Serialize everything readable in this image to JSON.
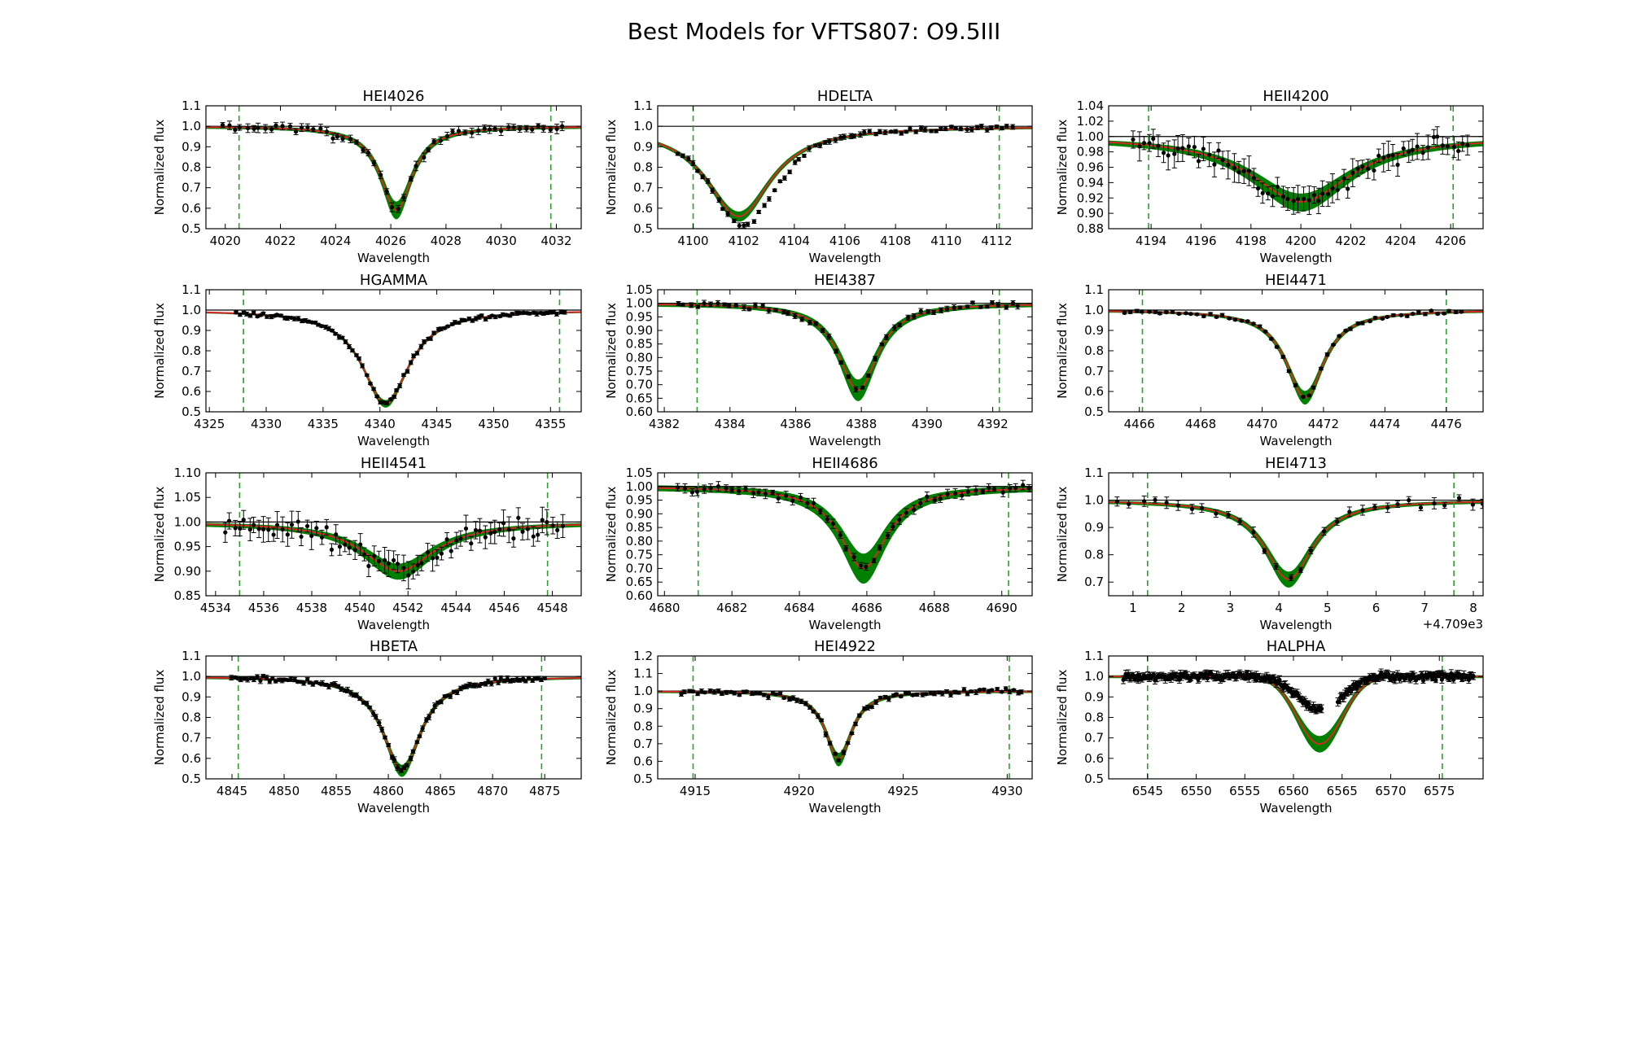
{
  "figure": {
    "title": "Best Models for VFTS807: O9.5III",
    "colors": {
      "model": "#d62728",
      "envelope": "#008000",
      "data": "#000000",
      "window": "#2ca02c",
      "continuum": "#000000"
    }
  },
  "chart_data": [
    {
      "type": "line",
      "title": "HEI4026",
      "xlabel": "Wavelength",
      "ylabel": "Normalized flux",
      "xlim": [
        4019.3,
        4032.9
      ],
      "ylim": [
        0.5,
        1.1
      ],
      "xticks": [
        4020,
        4022,
        4024,
        4026,
        4028,
        4030,
        4032
      ],
      "yticks": [
        0.5,
        0.6,
        0.7,
        0.8,
        0.9,
        1.0,
        1.1
      ],
      "ytick_decimals": 1,
      "xtick_decimals": 0,
      "window": [
        4020.5,
        4031.8
      ],
      "line": {
        "center": 4026.2,
        "depth": 0.41,
        "width": 0.7,
        "shape": "lorentz",
        "band": 0.02,
        "band_extra": 0.04
      },
      "data": {
        "step": 0.22,
        "scatter": 0.02,
        "err": 0.017,
        "seed": 1
      }
    },
    {
      "type": "line",
      "title": "HDELTA",
      "xlabel": "Wavelength",
      "ylabel": "Normalized flux",
      "xlim": [
        4098.6,
        4113.4
      ],
      "ylim": [
        0.5,
        1.1
      ],
      "xticks": [
        4100,
        4102,
        4104,
        4106,
        4108,
        4110,
        4112
      ],
      "yticks": [
        0.5,
        0.6,
        0.7,
        0.8,
        0.9,
        1.0,
        1.1
      ],
      "ytick_decimals": 1,
      "xtick_decimals": 0,
      "window": [
        4100.0,
        4112.1
      ],
      "line": {
        "center": 4101.8,
        "depth": 0.44,
        "width": 1.55,
        "shape": "lorentz",
        "band": 0.015,
        "band_extra": 0.01
      },
      "data": {
        "step": 0.2,
        "scatter": 0.012,
        "err": 0.01,
        "seed": 2,
        "offset": {
          "center": 4102.9,
          "amp": -0.08,
          "width": 0.9
        }
      }
    },
    {
      "type": "line",
      "title": "HEII4200",
      "xlabel": "Wavelength",
      "ylabel": "Normalized flux",
      "xlim": [
        4192.3,
        4207.3
      ],
      "ylim": [
        0.88,
        1.04
      ],
      "xticks": [
        4194,
        4196,
        4198,
        4200,
        4202,
        4204,
        4206
      ],
      "yticks": [
        0.88,
        0.9,
        0.92,
        0.94,
        0.96,
        0.98,
        1.0,
        1.02,
        1.04
      ],
      "ytick_decimals": 2,
      "xtick_decimals": 0,
      "window": [
        4193.9,
        4206.1
      ],
      "line": {
        "center": 4200.0,
        "depth": 0.085,
        "width": 2.4,
        "shape": "lorentz",
        "band": 0.005,
        "band_extra": 0.05
      },
      "data": {
        "step": 0.2,
        "scatter": 0.012,
        "err": 0.014,
        "seed": 3
      }
    },
    {
      "type": "line",
      "title": "HGAMMA",
      "xlabel": "Wavelength",
      "ylabel": "Normalized flux",
      "xlim": [
        4324.7,
        4357.7
      ],
      "ylim": [
        0.5,
        1.1
      ],
      "xticks": [
        4325,
        4330,
        4335,
        4340,
        4345,
        4350,
        4355
      ],
      "yticks": [
        0.5,
        0.6,
        0.7,
        0.8,
        0.9,
        1.0,
        1.1
      ],
      "ytick_decimals": 1,
      "xtick_decimals": 0,
      "window": [
        4328.0,
        4355.8
      ],
      "line": {
        "center": 4340.5,
        "depth": 0.46,
        "width": 2.5,
        "shape": "lorentz",
        "band": 0.01,
        "band_extra": 0.01
      },
      "data": {
        "step": 0.3,
        "scatter": 0.01,
        "err": 0.008,
        "seed": 4
      }
    },
    {
      "type": "line",
      "title": "HEI4387",
      "xlabel": "Wavelength",
      "ylabel": "Normalized flux",
      "xlim": [
        4381.8,
        4393.2
      ],
      "ylim": [
        0.6,
        1.05
      ],
      "xticks": [
        4382,
        4384,
        4386,
        4388,
        4390,
        4392
      ],
      "yticks": [
        0.6,
        0.65,
        0.7,
        0.75,
        0.8,
        0.85,
        0.9,
        0.95,
        1.0,
        1.05
      ],
      "ytick_decimals": 2,
      "xtick_decimals": 0,
      "window": [
        4383.0,
        4392.2
      ],
      "line": {
        "center": 4387.9,
        "depth": 0.32,
        "width": 0.72,
        "shape": "lorentz",
        "band": 0.02,
        "band_extra": 0.04
      },
      "data": {
        "step": 0.2,
        "scatter": 0.012,
        "err": 0.008,
        "seed": 5
      }
    },
    {
      "type": "line",
      "title": "HEI4471",
      "xlabel": "Wavelength",
      "ylabel": "Normalized flux",
      "xlim": [
        4465.0,
        4477.2
      ],
      "ylim": [
        0.5,
        1.1
      ],
      "xticks": [
        4466,
        4468,
        4470,
        4472,
        4474,
        4476
      ],
      "yticks": [
        0.5,
        0.6,
        0.7,
        0.8,
        0.9,
        1.0,
        1.1
      ],
      "ytick_decimals": 1,
      "xtick_decimals": 0,
      "window": [
        4466.1,
        4476.0
      ],
      "line": {
        "center": 4471.4,
        "depth": 0.43,
        "width": 0.75,
        "shape": "lorentz",
        "band": 0.015,
        "band_extra": 0.03
      },
      "data": {
        "step": 0.2,
        "scatter": 0.01,
        "err": 0.006,
        "seed": 6
      }
    },
    {
      "type": "line",
      "title": "HEII4541",
      "xlabel": "Wavelength",
      "ylabel": "Normalized flux",
      "xlim": [
        4533.6,
        4549.2
      ],
      "ylim": [
        0.85,
        1.1
      ],
      "xticks": [
        4534,
        4536,
        4538,
        4540,
        4542,
        4544,
        4546,
        4548
      ],
      "yticks": [
        0.85,
        0.9,
        0.95,
        1.0,
        1.05,
        1.1
      ],
      "ytick_decimals": 2,
      "xtick_decimals": 0,
      "window": [
        4535.0,
        4547.8
      ],
      "line": {
        "center": 4541.6,
        "depth": 0.1,
        "width": 1.8,
        "shape": "lorentz",
        "band": 0.008,
        "band_extra": 0.05
      },
      "data": {
        "step": 0.2,
        "scatter": 0.022,
        "err": 0.02,
        "seed": 7
      }
    },
    {
      "type": "line",
      "title": "HEII4686",
      "xlabel": "Wavelength",
      "ylabel": "Normalized flux",
      "xlim": [
        4679.8,
        4690.9
      ],
      "ylim": [
        0.6,
        1.05
      ],
      "xticks": [
        4680,
        4682,
        4684,
        4686,
        4688,
        4690
      ],
      "yticks": [
        0.6,
        0.65,
        0.7,
        0.75,
        0.8,
        0.85,
        0.9,
        0.95,
        1.0,
        1.05
      ],
      "ytick_decimals": 2,
      "xtick_decimals": 0,
      "window": [
        4681.0,
        4690.2
      ],
      "line": {
        "center": 4685.9,
        "depth": 0.3,
        "width": 0.85,
        "shape": "lorentz",
        "band": 0.03,
        "band_extra": 0.05
      },
      "data": {
        "step": 0.2,
        "scatter": 0.015,
        "err": 0.013,
        "seed": 8
      }
    },
    {
      "type": "line",
      "title": "HEI4713",
      "xlabel": "Wavelength",
      "ylabel": "Normalized flux",
      "xlim": [
        0.5,
        8.2
      ],
      "ylim": [
        0.65,
        1.1
      ],
      "xticks": [
        1,
        2,
        3,
        4,
        5,
        6,
        7,
        8
      ],
      "yticks": [
        0.7,
        0.8,
        0.9,
        1.0,
        1.1
      ],
      "ytick_decimals": 1,
      "xtick_decimals": 0,
      "x_offset_label": "+4.709e3",
      "window": [
        1.3,
        7.6
      ],
      "line": {
        "center": 4.2,
        "depth": 0.29,
        "width": 0.6,
        "shape": "lorentz",
        "band": 0.015,
        "band_extra": 0.03
      },
      "data": {
        "step": 0.25,
        "scatter": 0.015,
        "err": 0.015,
        "seed": 9
      }
    },
    {
      "type": "line",
      "title": "HBETA",
      "xlabel": "Wavelength",
      "ylabel": "Normalized flux",
      "xlim": [
        4842.5,
        4878.5
      ],
      "ylim": [
        0.5,
        1.1
      ],
      "xticks": [
        4845,
        4850,
        4855,
        4860,
        4865,
        4870,
        4875
      ],
      "yticks": [
        0.5,
        0.6,
        0.7,
        0.8,
        0.9,
        1.0,
        1.1
      ],
      "ytick_decimals": 1,
      "xtick_decimals": 0,
      "window": [
        4845.6,
        4874.7
      ],
      "line": {
        "center": 4861.3,
        "depth": 0.46,
        "width": 2.2,
        "shape": "lorentz",
        "band": 0.015,
        "band_extra": 0.02
      },
      "data": {
        "step": 0.3,
        "scatter": 0.012,
        "err": 0.01,
        "seed": 10
      }
    },
    {
      "type": "line",
      "title": "HEI4922",
      "xlabel": "Wavelength",
      "ylabel": "Normalized flux",
      "xlim": [
        4913.2,
        4931.2
      ],
      "ylim": [
        0.5,
        1.2
      ],
      "xticks": [
        4915,
        4920,
        4925,
        4930
      ],
      "yticks": [
        0.5,
        0.6,
        0.7,
        0.8,
        0.9,
        1.0,
        1.1,
        1.2
      ],
      "ytick_decimals": 1,
      "xtick_decimals": 0,
      "window": [
        4914.9,
        4930.1
      ],
      "line": {
        "center": 4921.9,
        "depth": 0.39,
        "width": 0.75,
        "shape": "lorentz",
        "band": 0.02,
        "band_extra": 0.03
      },
      "data": {
        "step": 0.2,
        "scatter": 0.015,
        "err": 0.01,
        "seed": 11
      }
    },
    {
      "type": "line",
      "title": "HALPHA",
      "xlabel": "Wavelength",
      "ylabel": "Normalized flux",
      "xlim": [
        6541.0,
        6579.5
      ],
      "ylim": [
        0.5,
        1.1
      ],
      "xticks": [
        6545,
        6550,
        6555,
        6560,
        6565,
        6570,
        6575
      ],
      "yticks": [
        0.5,
        0.6,
        0.7,
        0.8,
        0.9,
        1.0,
        1.1
      ],
      "ytick_decimals": 1,
      "xtick_decimals": 0,
      "window": [
        6545.0,
        6575.3
      ],
      "line": {
        "center": 6562.7,
        "depth": 0.33,
        "width": 2.3,
        "shape": "gauss",
        "band": 0.02,
        "band_extra": 0.04
      },
      "data": {
        "step": 0.12,
        "scatter": 0.018,
        "err": 0.015,
        "seed": 12,
        "x_range": [
          6542.5,
          6578.5
        ],
        "gap": [
          6563.0,
          6564.5
        ],
        "depth_scale": 0.5
      }
    }
  ]
}
